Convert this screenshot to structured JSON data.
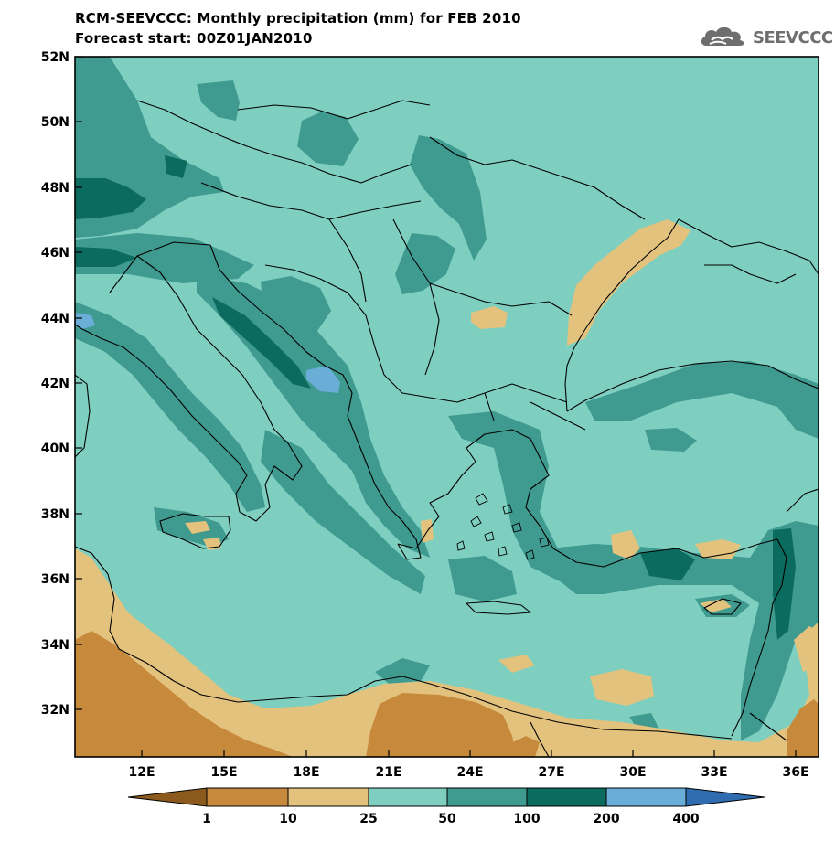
{
  "header": {
    "title": "RCM-SEEVCCC: Monthly precipitation (mm) for FEB 2010",
    "subtitle": "Forecast start: 00Z01JAN2010"
  },
  "logo": {
    "text": "SEEVCCC",
    "icon": "cloud-icon"
  },
  "map": {
    "lat_labels": [
      "52N",
      "50N",
      "48N",
      "46N",
      "44N",
      "42N",
      "40N",
      "38N",
      "36N",
      "34N",
      "32N"
    ],
    "lon_labels": [
      "12E",
      "15E",
      "18E",
      "21E",
      "24E",
      "27E",
      "30E",
      "33E",
      "36E"
    ]
  },
  "legend": {
    "labels": [
      "1",
      "10",
      "25",
      "50",
      "100",
      "200",
      "400"
    ],
    "colors": [
      "#8c5a1c",
      "#c78a3c",
      "#e3c27e",
      "#7fcfc0",
      "#3f9a8f",
      "#0b6b5e",
      "#6aaed8",
      "#2f6db0"
    ]
  },
  "palette": {
    "bin_1_10": "#c78a3c",
    "bin_10_25": "#e3c27e",
    "bin_25_50": "#7fcfc0",
    "bin_50_100": "#3f9a8f",
    "bin_100_200": "#0b6b5e",
    "bin_200_400": "#6aaed8",
    "bin_0_1": "#8c5a1c"
  }
}
